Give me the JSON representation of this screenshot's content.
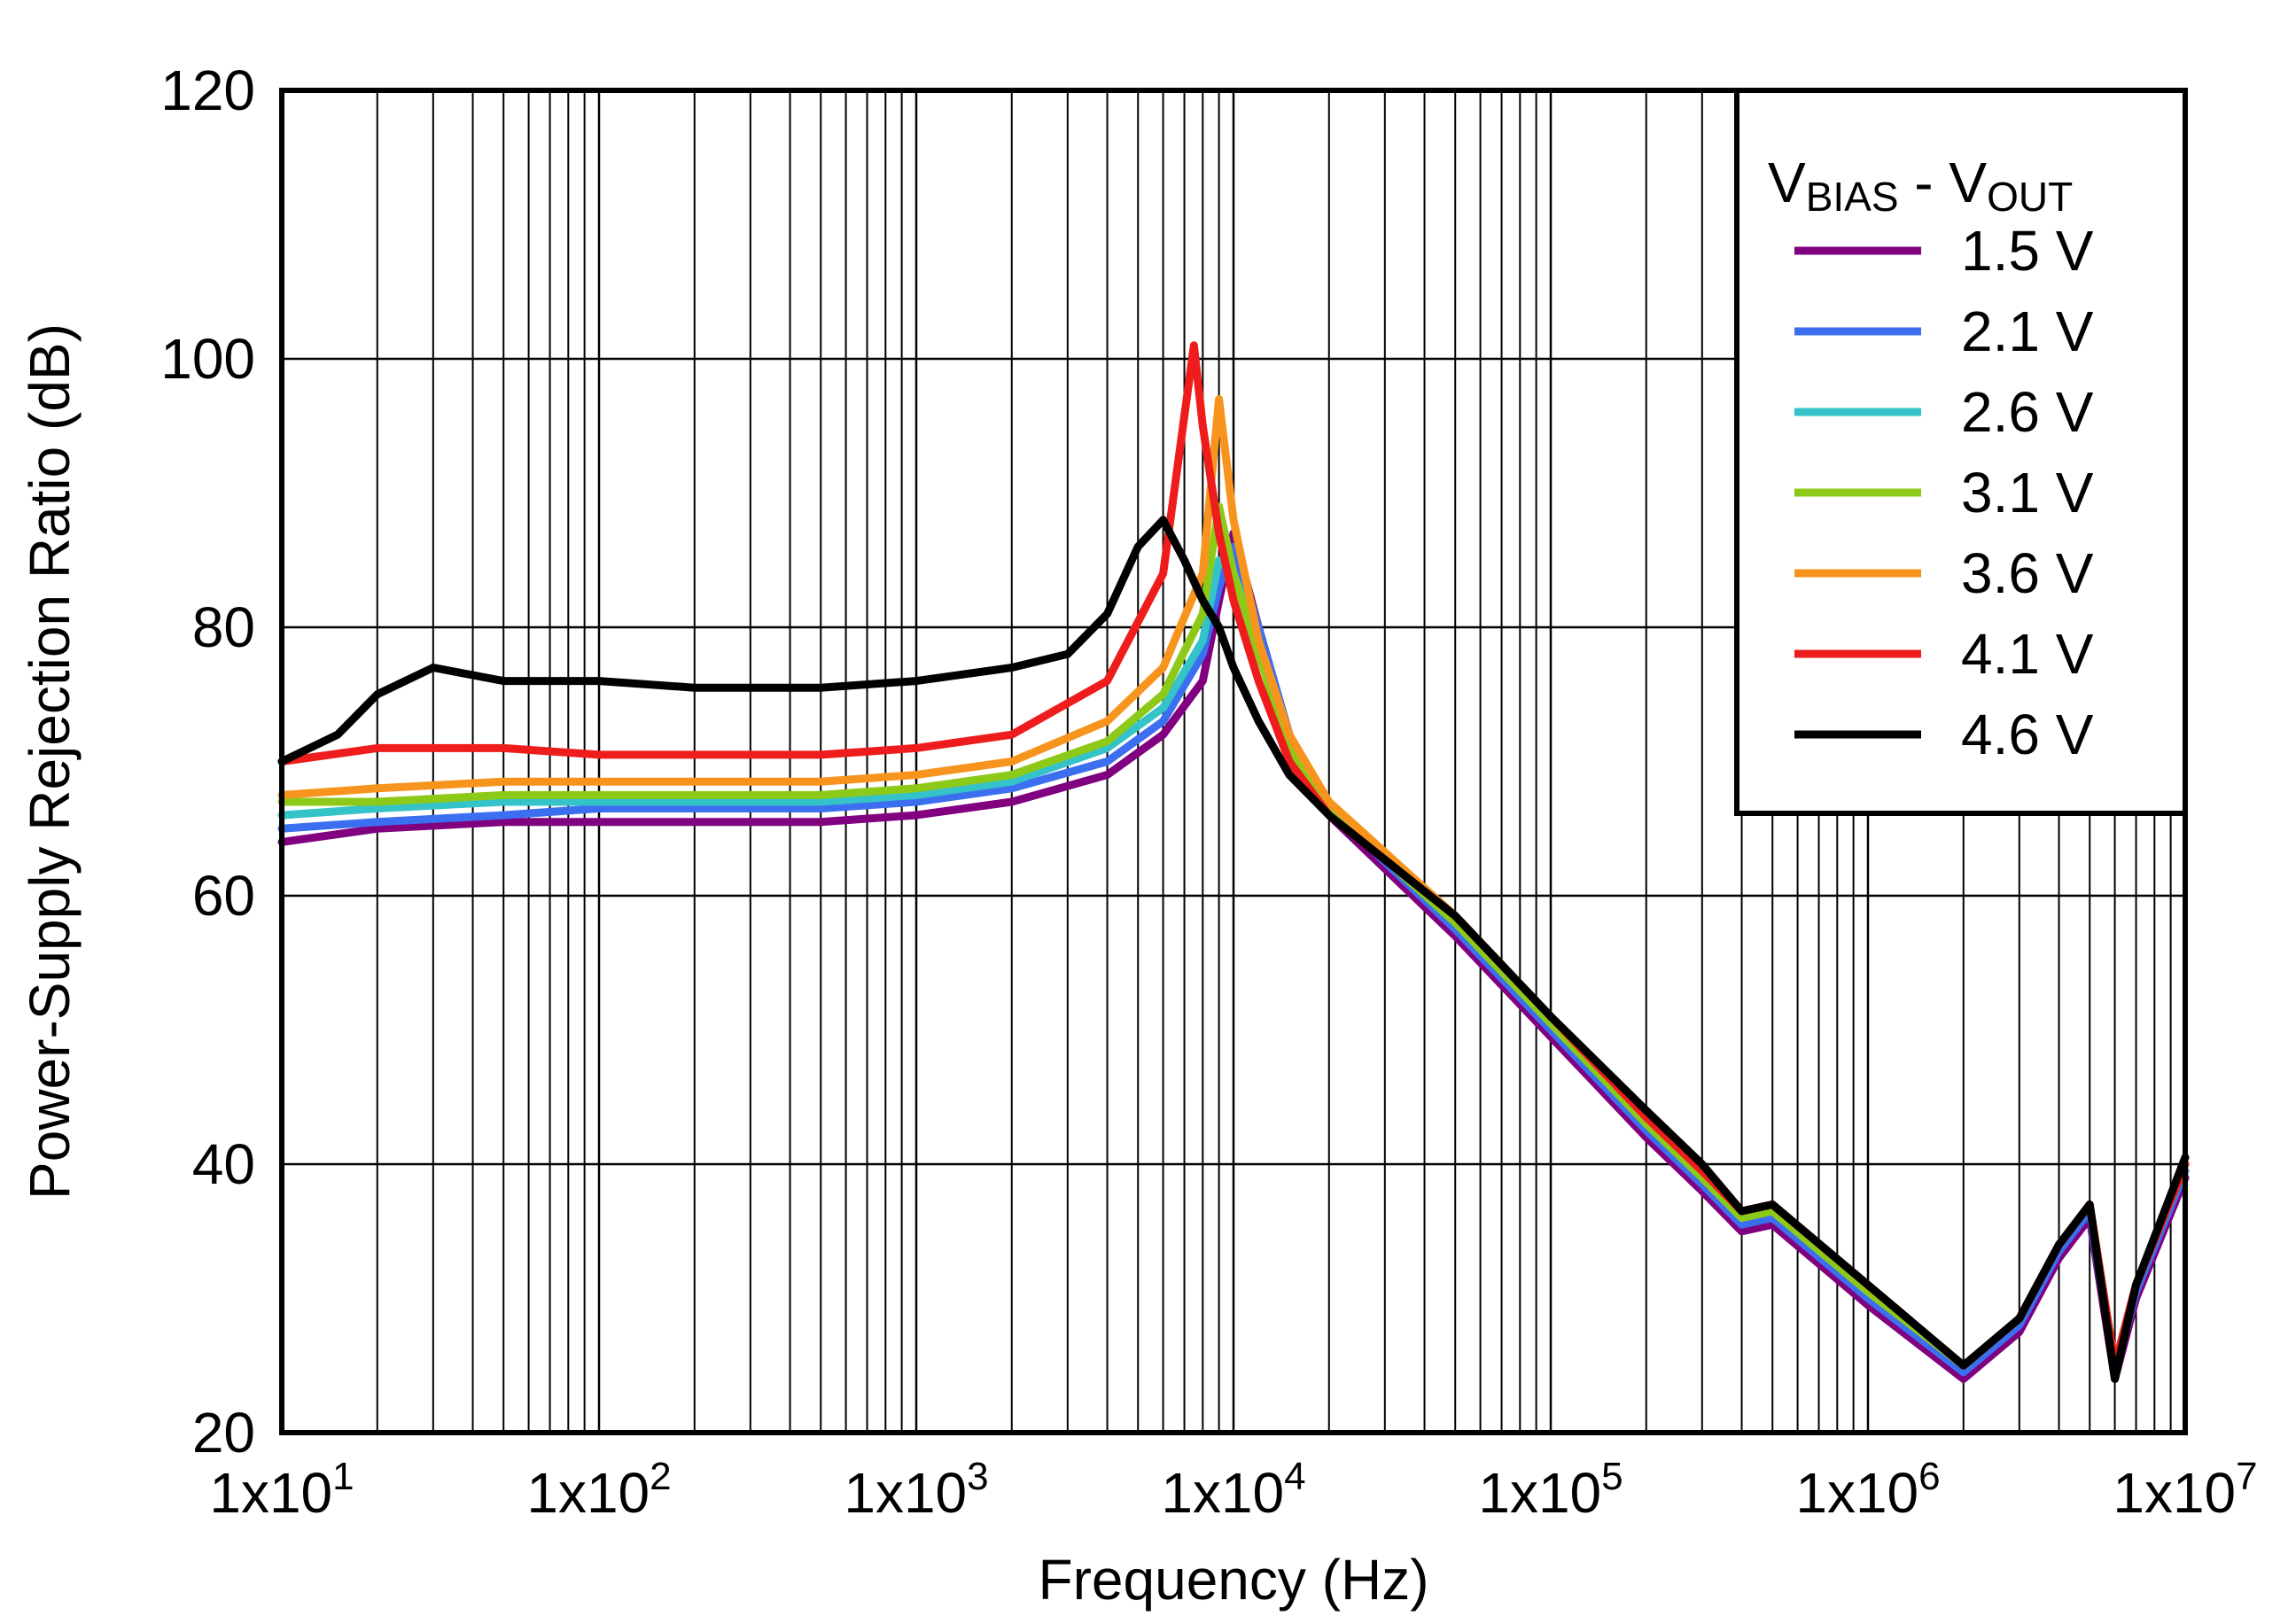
{
  "chart_data": {
    "type": "line",
    "xlabel": "Frequency (Hz)",
    "ylabel": "Power-Supply Rejection Ratio (dB)",
    "x_scale": "log",
    "xlim": [
      10,
      10000000
    ],
    "ylim": [
      20,
      120
    ],
    "grid": true,
    "x_ticks": [
      {
        "value": 10,
        "mant": "1x10",
        "exp": "1"
      },
      {
        "value": 100,
        "mant": "1x10",
        "exp": "2"
      },
      {
        "value": 1000,
        "mant": "1x10",
        "exp": "3"
      },
      {
        "value": 10000,
        "mant": "1x10",
        "exp": "4"
      },
      {
        "value": 100000,
        "mant": "1x10",
        "exp": "5"
      },
      {
        "value": 1000000,
        "mant": "1x10",
        "exp": "6"
      },
      {
        "value": 10000000,
        "mant": "1x10",
        "exp": "7"
      }
    ],
    "y_ticks": [
      20,
      40,
      60,
      80,
      100,
      120
    ],
    "legend": {
      "position": "top-right",
      "title_main": "V",
      "title_sub1": "BIAS",
      "title_mid": " - V",
      "title_sub2": "OUT"
    },
    "series": [
      {
        "name": "1.5 V",
        "color": "#800080",
        "x": [
          10,
          20,
          50,
          100,
          200,
          500,
          1000,
          2000,
          4000,
          6000,
          8000,
          9000,
          10000,
          12000,
          15000,
          20000,
          50000,
          100000,
          200000,
          300000,
          400000,
          500000,
          1000000,
          2000000,
          3000000,
          4000000,
          5000000,
          6000000,
          7000000,
          10000000
        ],
        "y": [
          64,
          65,
          65.5,
          65.5,
          65.5,
          65.5,
          66,
          67,
          69,
          72,
          76,
          82,
          87,
          80,
          72,
          66,
          57,
          49.5,
          42,
          38,
          35,
          35.5,
          29.5,
          24,
          27.5,
          33,
          36,
          24,
          30,
          39
        ]
      },
      {
        "name": "2.1 V",
        "color": "#3b6ff0",
        "x": [
          10,
          20,
          50,
          100,
          200,
          500,
          1000,
          2000,
          4000,
          6000,
          8000,
          9000,
          10000,
          12000,
          15000,
          20000,
          50000,
          100000,
          200000,
          300000,
          400000,
          500000,
          1000000,
          2000000,
          3000000,
          4000000,
          5000000,
          6000000,
          7000000,
          10000000
        ],
        "y": [
          65,
          65.5,
          66,
          66.5,
          66.5,
          66.5,
          67,
          68,
          70,
          73,
          78,
          83,
          86,
          80,
          72,
          66.5,
          57.5,
          50,
          42.5,
          38.5,
          35.5,
          36,
          30,
          24.5,
          28,
          33.5,
          36.5,
          24.5,
          30.5,
          39.5
        ]
      },
      {
        "name": "2.6 V",
        "color": "#33c3c8",
        "x": [
          10,
          20,
          50,
          100,
          200,
          500,
          1000,
          2000,
          4000,
          6000,
          8000,
          9000,
          10000,
          12000,
          15000,
          20000,
          50000,
          100000,
          200000,
          300000,
          400000,
          500000,
          1000000,
          2000000,
          3000000,
          4000000,
          5000000,
          6000000,
          7000000,
          10000000
        ],
        "y": [
          66,
          66.5,
          67,
          67,
          67,
          67,
          67.5,
          68.5,
          71,
          74,
          79,
          85,
          84,
          79,
          72,
          66.5,
          58,
          50.5,
          43,
          39,
          36,
          36.5,
          30.5,
          25,
          28.5,
          34,
          37,
          25,
          31,
          40
        ]
      },
      {
        "name": "3.1 V",
        "color": "#8cc919",
        "x": [
          10,
          20,
          50,
          100,
          200,
          500,
          1000,
          2000,
          4000,
          6000,
          8000,
          9000,
          10000,
          12000,
          15000,
          20000,
          50000,
          100000,
          200000,
          300000,
          400000,
          500000,
          1000000,
          2000000,
          3000000,
          4000000,
          5000000,
          6000000,
          7000000,
          10000000
        ],
        "y": [
          67,
          67,
          67.5,
          67.5,
          67.5,
          67.5,
          68,
          69,
          71.5,
          75,
          81,
          89,
          84,
          78,
          71,
          66.5,
          58,
          50.5,
          43,
          39,
          36,
          36.5,
          30.5,
          25,
          28.5,
          34,
          37,
          25,
          31,
          40
        ]
      },
      {
        "name": "3.6 V",
        "color": "#f7941d",
        "x": [
          10,
          20,
          50,
          100,
          200,
          500,
          1000,
          2000,
          4000,
          6000,
          8000,
          9000,
          10000,
          12000,
          15000,
          20000,
          50000,
          100000,
          200000,
          300000,
          400000,
          500000,
          1000000,
          2000000,
          3000000,
          4000000,
          5000000,
          6000000,
          7000000,
          10000000
        ],
        "y": [
          67.5,
          68,
          68.5,
          68.5,
          68.5,
          68.5,
          69,
          70,
          73,
          77,
          84,
          97,
          88,
          79,
          72,
          67,
          58.5,
          51,
          43.5,
          39.5,
          36.5,
          37,
          31,
          25,
          28.5,
          34,
          37,
          25,
          31,
          40
        ]
      },
      {
        "name": "4.1 V",
        "color": "#ee1c1c",
        "x": [
          10,
          20,
          50,
          100,
          200,
          500,
          1000,
          2000,
          4000,
          6000,
          7500,
          8000,
          9000,
          10000,
          12000,
          15000,
          20000,
          50000,
          100000,
          200000,
          300000,
          400000,
          500000,
          1000000,
          2000000,
          3000000,
          4000000,
          5000000,
          6000000,
          7000000,
          10000000
        ],
        "y": [
          70,
          71,
          71,
          70.5,
          70.5,
          70.5,
          71,
          72,
          76,
          84,
          101,
          95,
          87,
          82,
          76,
          70,
          66,
          58.5,
          51,
          43.5,
          39.5,
          36.5,
          37,
          31,
          25,
          28.5,
          34,
          37,
          25,
          31,
          40
        ]
      },
      {
        "name": "4.6 V",
        "color": "#000000",
        "x": [
          10,
          15,
          20,
          30,
          50,
          100,
          200,
          500,
          1000,
          2000,
          3000,
          4000,
          5000,
          6000,
          7000,
          8000,
          9000,
          10000,
          12000,
          15000,
          20000,
          50000,
          100000,
          200000,
          300000,
          400000,
          500000,
          1000000,
          2000000,
          3000000,
          4000000,
          5000000,
          6000000,
          7000000,
          10000000
        ],
        "y": [
          70,
          72,
          75,
          77,
          76,
          76,
          75.5,
          75.5,
          76,
          77,
          78,
          81,
          86,
          88,
          85,
          82,
          80,
          77,
          73,
          69,
          66,
          58.5,
          51,
          44,
          40,
          36.5,
          37,
          31,
          25,
          28.5,
          34,
          37,
          24,
          31,
          40.5
        ]
      }
    ]
  }
}
